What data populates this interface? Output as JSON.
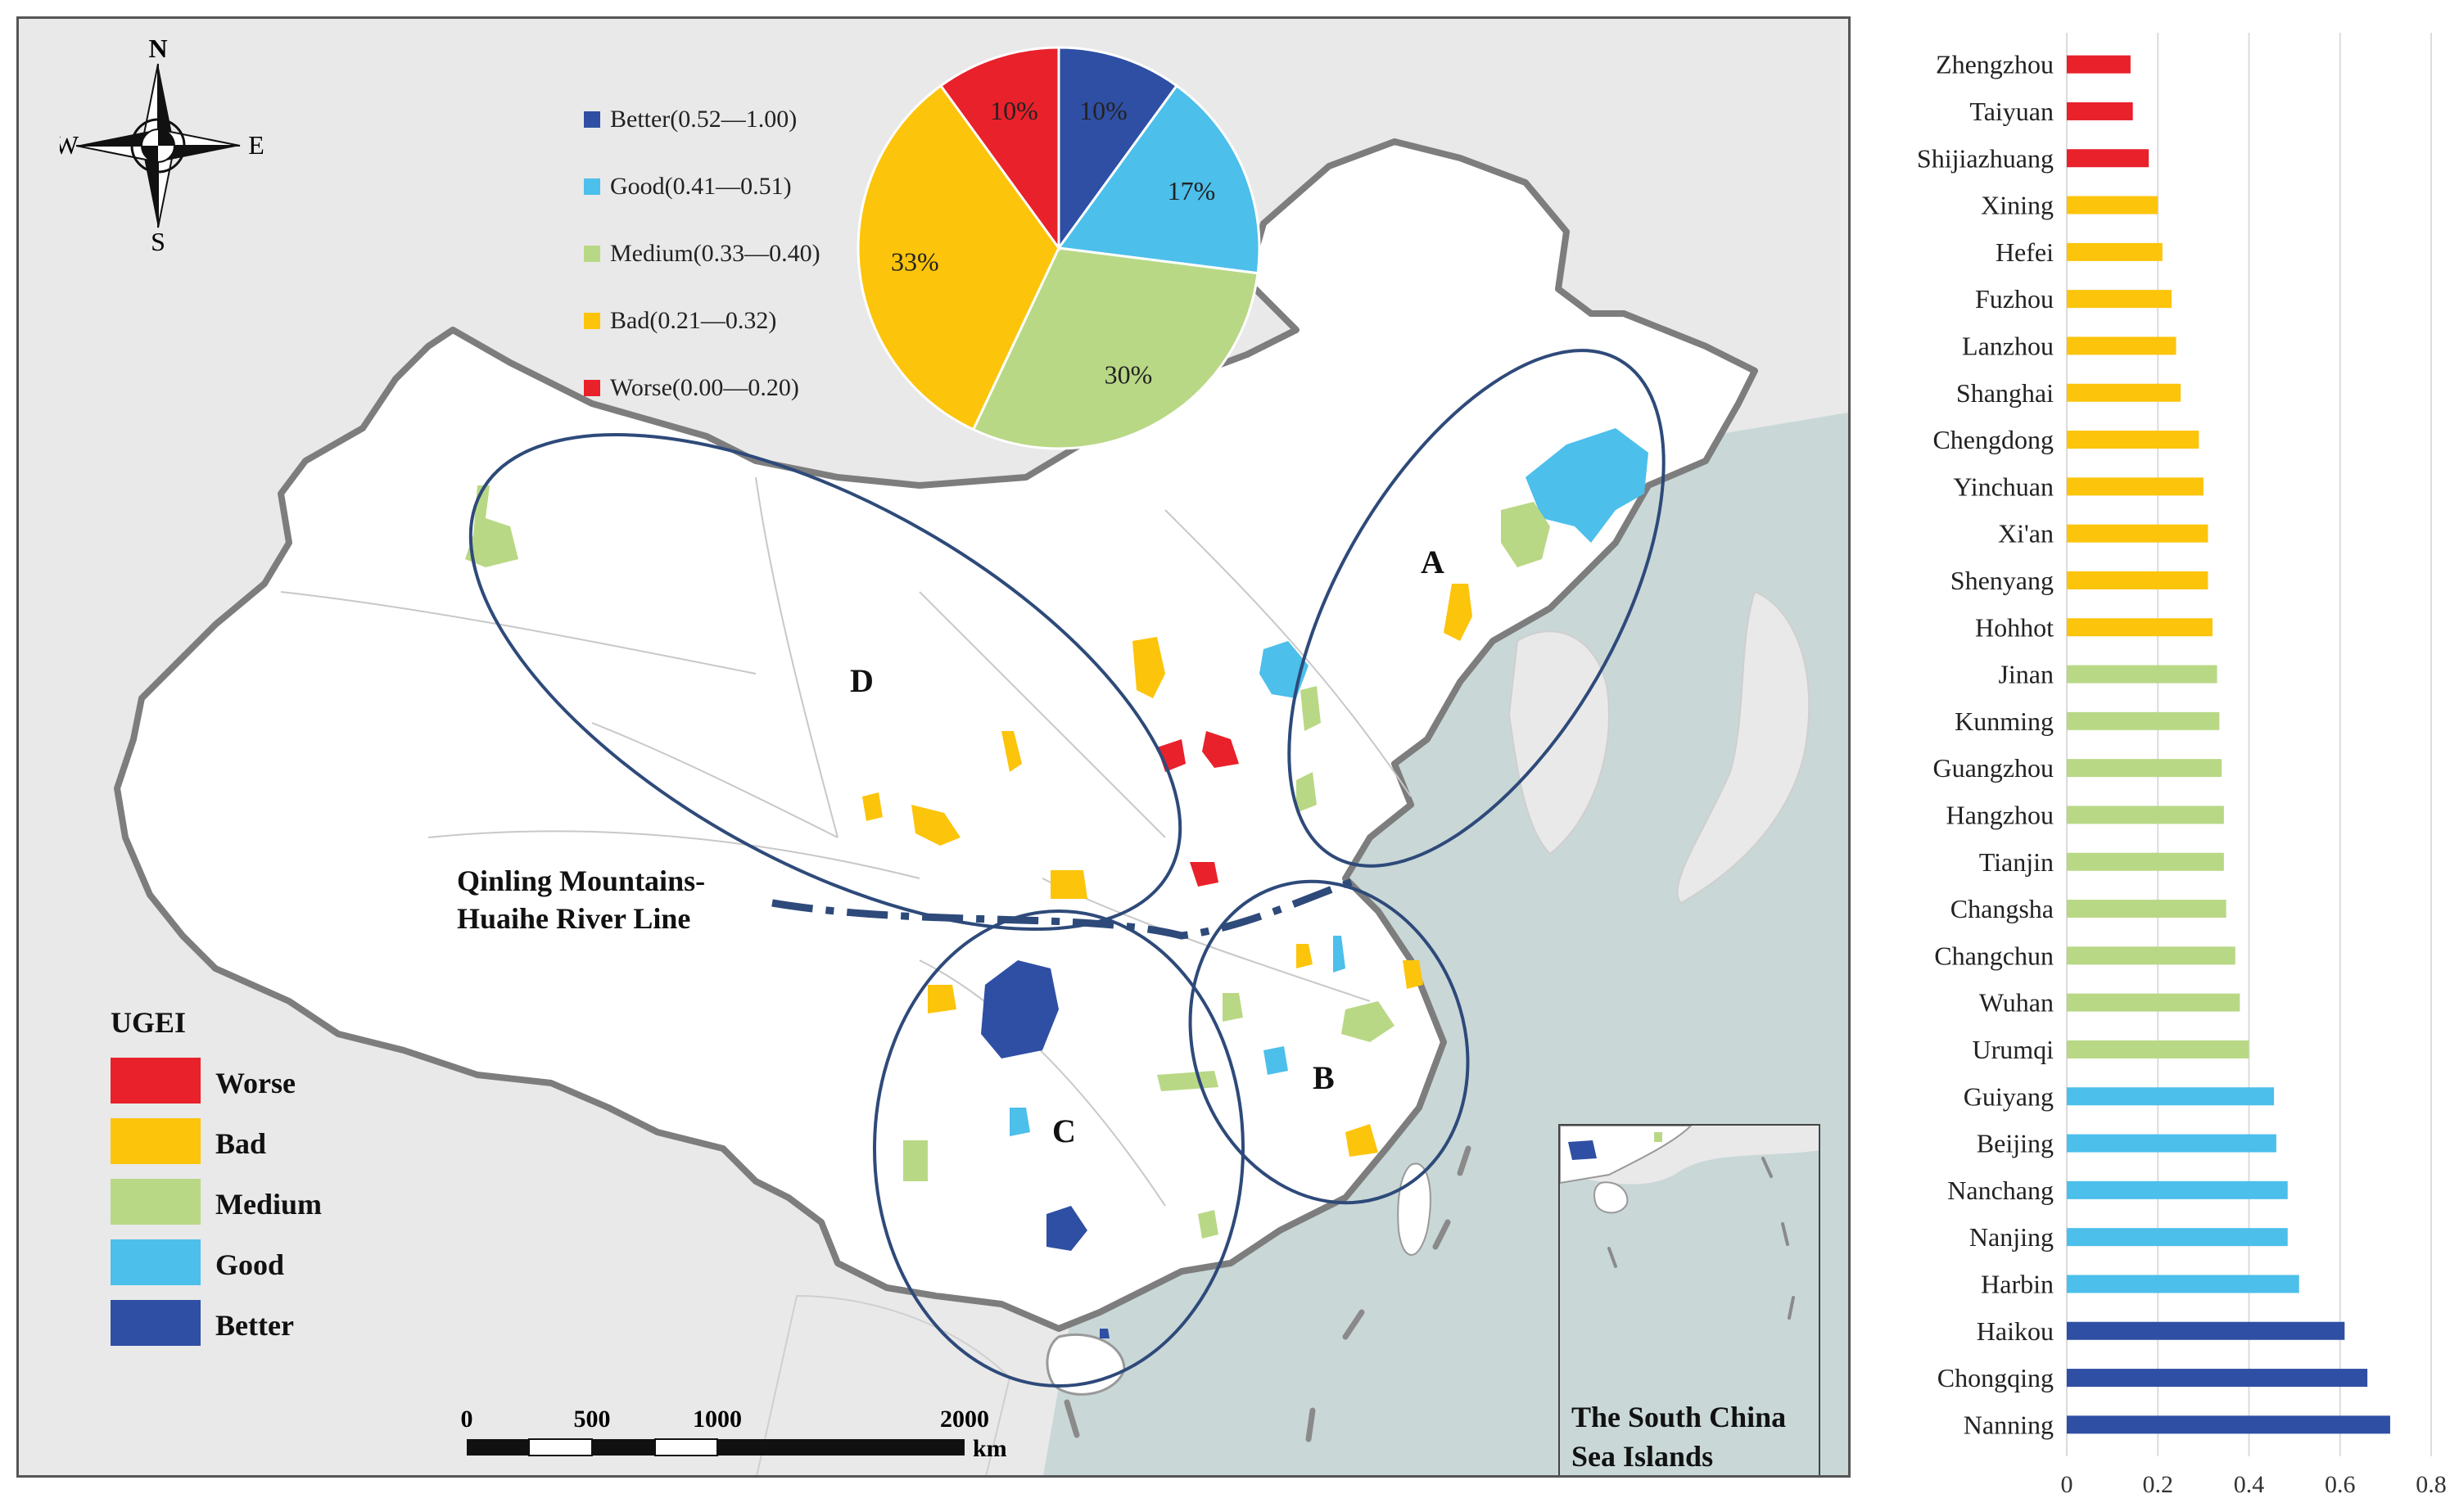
{
  "colors": {
    "worse": "#e8212b",
    "bad": "#fcc40b",
    "medium": "#b9d886",
    "good": "#4cbfeb",
    "better": "#2f4fa4",
    "land": "#ffffff",
    "sea": "#c9d7d7",
    "outside": "#e9e9e9",
    "ellipse": "#2e4a7a",
    "border": "#7d7d7d"
  },
  "compass": {
    "north": "N",
    "south": "S",
    "east": "E",
    "west": "W"
  },
  "pie": {
    "legend": [
      {
        "label": "Better(0.52—1.00)",
        "color": "#2f4fa4"
      },
      {
        "label": "Good(0.41—0.51)",
        "color": "#4cbfeb"
      },
      {
        "label": "Medium(0.33—0.40)",
        "color": "#b9d886"
      },
      {
        "label": "Bad(0.21—0.32)",
        "color": "#fcc40b"
      },
      {
        "label": "Worse(0.00—0.20)",
        "color": "#e8212b"
      }
    ],
    "slices": [
      {
        "category": "Better",
        "percent": 10,
        "label": "10%",
        "color": "#2f4fa4"
      },
      {
        "category": "Good",
        "percent": 17,
        "label": "17%",
        "color": "#4cbfeb"
      },
      {
        "category": "Medium",
        "percent": 30,
        "label": "30%",
        "color": "#b9d886"
      },
      {
        "category": "Bad",
        "percent": 33,
        "label": "33%",
        "color": "#fcc40b"
      },
      {
        "category": "Worse",
        "percent": 10,
        "label": "10%",
        "color": "#e8212b"
      }
    ]
  },
  "regions": [
    "A",
    "B",
    "C",
    "D"
  ],
  "line_label": [
    "Qinling Mountains-",
    "Huaihe River Line"
  ],
  "ugei_legend": {
    "title": "UGEI",
    "items": [
      {
        "label": "Worse",
        "color": "#e8212b"
      },
      {
        "label": "Bad",
        "color": "#fcc40b"
      },
      {
        "label": "Medium",
        "color": "#b9d886"
      },
      {
        "label": "Good",
        "color": "#4cbfeb"
      },
      {
        "label": "Better",
        "color": "#2f4fa4"
      }
    ]
  },
  "scale_bar": {
    "ticks": [
      "0",
      "500",
      "1000",
      "2000"
    ],
    "unit": "km"
  },
  "inset": {
    "title": [
      "The South China",
      "Sea Islands"
    ]
  },
  "chart_data": {
    "type": "bar",
    "orientation": "horizontal",
    "xlim": [
      0,
      0.8
    ],
    "xticks": [
      "0",
      "0.2",
      "0.4",
      "0.6",
      "0.8"
    ],
    "categories": [
      "Zhengzhou",
      "Taiyuan",
      "Shijiazhuang",
      "Xining",
      "Hefei",
      "Fuzhou",
      "Lanzhou",
      "Shanghai",
      "Chengdong",
      "Yinchuan",
      "Xi'an",
      "Shenyang",
      "Hohhot",
      "Jinan",
      "Kunming",
      "Guangzhou",
      "Hangzhou",
      "Tianjin",
      "Changsha",
      "Changchun",
      "Wuhan",
      "Urumqi",
      "Guiyang",
      "Beijing",
      "Nanchang",
      "Nanjing",
      "Harbin",
      "Haikou",
      "Chongqing",
      "Nanning"
    ],
    "values": [
      0.14,
      0.145,
      0.18,
      0.2,
      0.21,
      0.23,
      0.24,
      0.25,
      0.29,
      0.3,
      0.31,
      0.31,
      0.32,
      0.33,
      0.335,
      0.34,
      0.345,
      0.345,
      0.35,
      0.37,
      0.38,
      0.4,
      0.455,
      0.46,
      0.485,
      0.485,
      0.51,
      0.61,
      0.66,
      0.71
    ],
    "classes": [
      "worse",
      "worse",
      "worse",
      "bad",
      "bad",
      "bad",
      "bad",
      "bad",
      "bad",
      "bad",
      "bad",
      "bad",
      "bad",
      "medium",
      "medium",
      "medium",
      "medium",
      "medium",
      "medium",
      "medium",
      "medium",
      "medium",
      "good",
      "good",
      "good",
      "good",
      "good",
      "better",
      "better",
      "better"
    ],
    "grid": true
  }
}
